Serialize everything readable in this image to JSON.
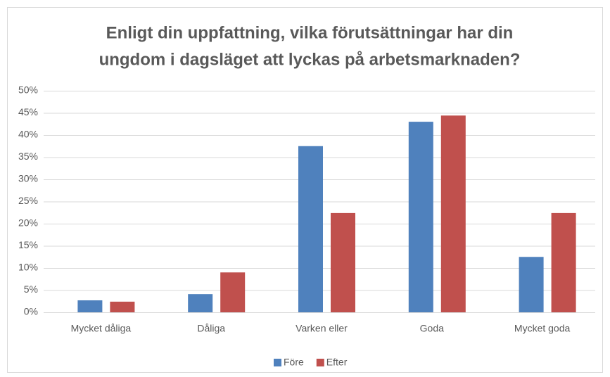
{
  "chart_data": {
    "type": "bar",
    "title": [
      "Enligt din uppfattning, vilka förutsättningar har din",
      "ungdom i dagsläget att lyckas på arbetsmarknaden?"
    ],
    "categories": [
      "Mycket dåliga",
      "Dåliga",
      "Varken eller",
      "Goda",
      "Mycket goda"
    ],
    "series": [
      {
        "name": "Före",
        "color": "#4f81bd",
        "values": [
          2.7,
          4.1,
          37.5,
          43.0,
          12.5
        ]
      },
      {
        "name": "Efter",
        "color": "#c0504d",
        "values": [
          2.4,
          9.0,
          22.4,
          44.4,
          22.4
        ]
      }
    ],
    "ylim": [
      0,
      50
    ],
    "yticks": [
      {
        "value": 0,
        "label": "0%"
      },
      {
        "value": 5,
        "label": "5%"
      },
      {
        "value": 10,
        "label": "10%"
      },
      {
        "value": 15,
        "label": "15%"
      },
      {
        "value": 20,
        "label": "20%"
      },
      {
        "value": 25,
        "label": "25%"
      },
      {
        "value": 30,
        "label": "30%"
      },
      {
        "value": 35,
        "label": "35%"
      },
      {
        "value": 40,
        "label": "40%"
      },
      {
        "value": 45,
        "label": "45%"
      },
      {
        "value": 50,
        "label": "50%"
      }
    ],
    "grid": true,
    "legend": "bottom"
  }
}
